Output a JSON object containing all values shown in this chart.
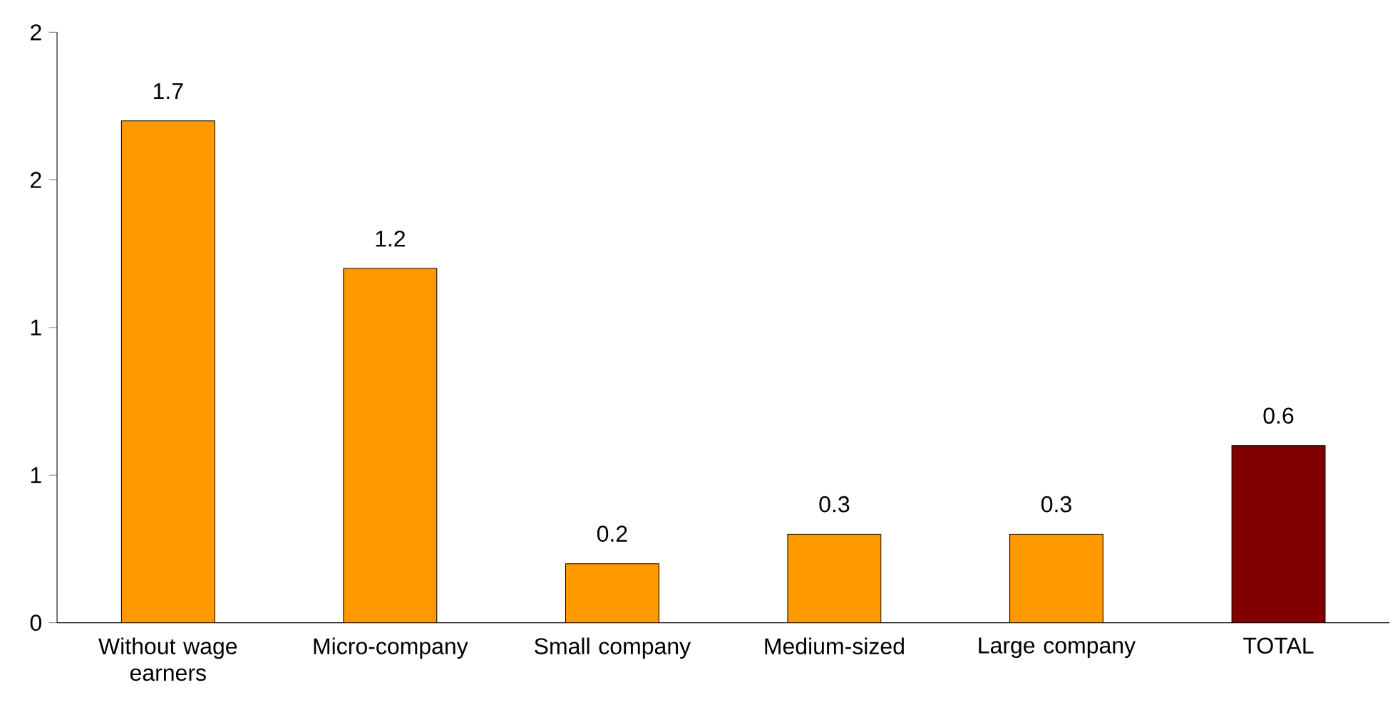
{
  "chart_data": {
    "type": "bar",
    "categories": [
      "Without wage earners",
      "Micro-company",
      "Small company",
      "Medium-sized",
      "Large company",
      "TOTAL"
    ],
    "values": [
      1.7,
      1.2,
      0.2,
      0.3,
      0.3,
      0.6
    ],
    "colors": [
      "#ff9900",
      "#ff9900",
      "#ff9900",
      "#ff9900",
      "#ff9900",
      "#800000"
    ],
    "ylim": [
      0,
      2
    ],
    "yticks": [
      0,
      {
        "value": 0.5,
        "label": "1"
      },
      {
        "value": 1,
        "label": "1"
      },
      {
        "value": 1.5,
        "label": "2"
      },
      2
    ],
    "data_labels": true
  }
}
